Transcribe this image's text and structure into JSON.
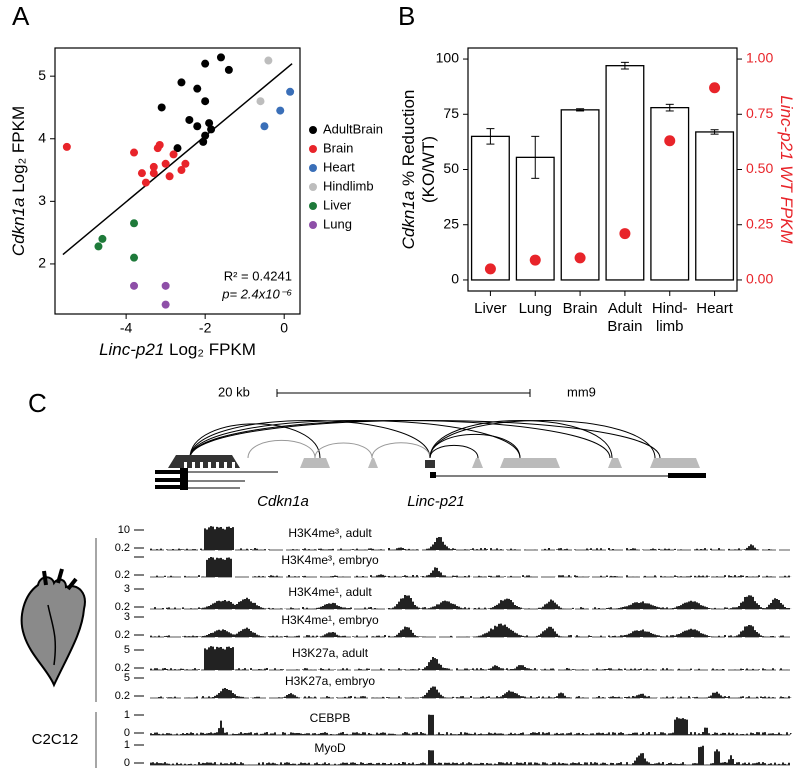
{
  "panel_letters": [
    "A",
    "B",
    "C"
  ],
  "chart_data": [
    {
      "type": "scatter",
      "x_label": [
        "Linc-p21",
        " Log₂ FPKM"
      ],
      "y_label": [
        "Cdkn1a",
        " Log₂ FPKM"
      ],
      "xlim": [
        -5.8,
        0.4
      ],
      "ylim": [
        1.2,
        5.45
      ],
      "xticks": [
        -4,
        -2,
        0
      ],
      "yticks": [
        2,
        3,
        4,
        5
      ],
      "annotations": [
        "R² = 0.4241",
        "p= 2.4x10⁻⁶"
      ],
      "fit_line": {
        "x": [
          -5.6,
          0.2
        ],
        "y": [
          2.15,
          5.2
        ]
      },
      "series": [
        {
          "name": "AdultBrain",
          "color": "#000000",
          "x": [
            -3.1,
            -2.6,
            -2.0,
            -1.6,
            -1.4,
            -2.2,
            -2.0,
            -2.4,
            -2.2,
            -2.0,
            -1.85,
            -2.7,
            -2.05,
            -1.9
          ],
          "y": [
            4.5,
            4.9,
            5.2,
            5.3,
            5.1,
            4.8,
            4.6,
            4.3,
            4.2,
            4.05,
            4.15,
            3.85,
            3.95,
            4.25
          ]
        },
        {
          "name": "Brain",
          "color": "#e8242a",
          "x": [
            -5.5,
            -3.8,
            -3.3,
            -3.2,
            -3.15,
            -3.0,
            -2.8,
            -2.6,
            -2.9,
            -3.5,
            -3.6,
            -3.3,
            -2.5
          ],
          "y": [
            3.87,
            3.78,
            3.55,
            3.85,
            3.9,
            3.6,
            3.75,
            3.5,
            3.4,
            3.3,
            3.45,
            3.45,
            3.6
          ]
        },
        {
          "name": "Heart",
          "color": "#3a6fb8",
          "x": [
            -0.5,
            -0.1,
            0.15
          ],
          "y": [
            4.2,
            4.45,
            4.75
          ]
        },
        {
          "name": "Hindlimb",
          "color": "#bdbdbd",
          "x": [
            -0.6,
            -0.4
          ],
          "y": [
            4.6,
            5.25
          ]
        },
        {
          "name": "Liver",
          "color": "#1e7a3a",
          "x": [
            -4.7,
            -4.6,
            -3.8,
            -3.8
          ],
          "y": [
            2.28,
            2.4,
            2.65,
            2.1
          ]
        },
        {
          "name": "Lung",
          "color": "#8e4fa8",
          "x": [
            -3.8,
            -3.0,
            -3.0
          ],
          "y": [
            1.65,
            1.65,
            1.35
          ]
        }
      ]
    },
    {
      "type": "bar",
      "categories": [
        [
          "Liver"
        ],
        [
          "Lung"
        ],
        [
          "Brain"
        ],
        [
          "Adult",
          "Brain"
        ],
        [
          "Hind-",
          "limb"
        ],
        [
          "Heart"
        ]
      ],
      "y_label": [
        [
          "Cdkn1a",
          " % Reduction"
        ],
        [
          "(KO/WT)"
        ]
      ],
      "y2_label": [
        "Linc-p21",
        " WT FPKM"
      ],
      "ylim": [
        -5,
        105
      ],
      "yticks": [
        0,
        25,
        50,
        75,
        100
      ],
      "y2lim": [
        -0.05,
        1.05
      ],
      "y2ticks": [
        {
          "value": 0,
          "label": "0.00"
        },
        {
          "value": 0.25,
          "label": "0.25"
        },
        {
          "value": 0.5,
          "label": "0.50"
        },
        {
          "value": 0.75,
          "label": "0.75"
        },
        {
          "value": 1,
          "label": "1.00"
        }
      ],
      "series": [
        {
          "color": "#ffffff",
          "values": [
            65,
            55.5,
            77,
            97,
            78,
            67
          ],
          "errors": [
            3.5,
            9.5,
            0.5,
            1.5,
            1.5,
            1
          ]
        },
        {
          "color": "#e8242a",
          "axis": "y2",
          "values": [
            0.05,
            0.09,
            0.1,
            0.21,
            0.63,
            0.87
          ]
        }
      ]
    }
  ],
  "genome_panel": {
    "scale_label": "20 kb",
    "assembly": "mm9",
    "genes": [
      "Cdkn1a",
      "Linc-p21"
    ],
    "cell_line": "C2C12",
    "tracks": [
      {
        "label": "H3K4me³, adult",
        "top": "10",
        "bottom": "0.2"
      },
      {
        "label": "H3K4me³, embryo",
        "bottom": "0.2"
      },
      {
        "label": "H3K4me¹, adult",
        "top": "3",
        "bottom": "0.2"
      },
      {
        "label": "H3K4me¹, embryo",
        "top": "3",
        "bottom": "0.2"
      },
      {
        "label": "H3K27a, adult",
        "top": "5",
        "bottom": "0.2"
      },
      {
        "label": "H3K27a, embryo",
        "top": "5",
        "bottom": "0.2"
      },
      {
        "label": "CEBPB",
        "top": "1",
        "bottom": "0"
      },
      {
        "label": "MyoD",
        "top": "1",
        "bottom": "0"
      }
    ]
  }
}
